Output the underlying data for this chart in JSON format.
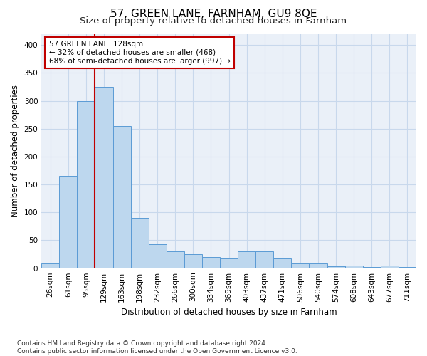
{
  "title": "57, GREEN LANE, FARNHAM, GU9 8QE",
  "subtitle": "Size of property relative to detached houses in Farnham",
  "xlabel": "Distribution of detached houses by size in Farnham",
  "ylabel": "Number of detached properties",
  "categories": [
    "26sqm",
    "61sqm",
    "95sqm",
    "129sqm",
    "163sqm",
    "198sqm",
    "232sqm",
    "266sqm",
    "300sqm",
    "334sqm",
    "369sqm",
    "403sqm",
    "437sqm",
    "471sqm",
    "506sqm",
    "540sqm",
    "574sqm",
    "608sqm",
    "643sqm",
    "677sqm",
    "711sqm"
  ],
  "values": [
    8,
    165,
    300,
    325,
    255,
    90,
    43,
    30,
    25,
    20,
    17,
    30,
    30,
    18,
    8,
    8,
    3,
    5,
    2,
    5,
    2
  ],
  "bar_color": "#bdd7ee",
  "bar_edge_color": "#5b9bd5",
  "reference_line_index": 3,
  "reference_line_color": "#c00000",
  "annotation_text": "57 GREEN LANE: 128sqm\n← 32% of detached houses are smaller (468)\n68% of semi-detached houses are larger (997) →",
  "annotation_box_color": "#ffffff",
  "annotation_box_edge_color": "#c00000",
  "footer_line1": "Contains HM Land Registry data © Crown copyright and database right 2024.",
  "footer_line2": "Contains public sector information licensed under the Open Government Licence v3.0.",
  "bg_color": "#eaf0f8",
  "plot_bg_color": "#dde8f5",
  "ylim": [
    0,
    420
  ],
  "yticks": [
    0,
    50,
    100,
    150,
    200,
    250,
    300,
    350,
    400
  ],
  "grid_color": "#c8d8ec",
  "title_fontsize": 11,
  "subtitle_fontsize": 9.5,
  "axis_label_fontsize": 8.5,
  "tick_fontsize": 7.5,
  "annotation_fontsize": 7.5,
  "footer_fontsize": 6.5
}
